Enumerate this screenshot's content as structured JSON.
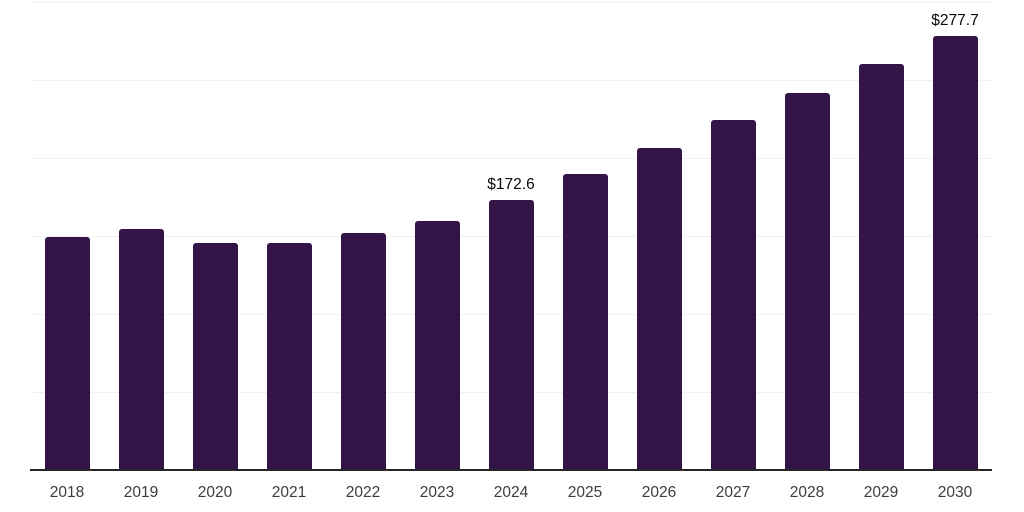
{
  "chart_data": {
    "type": "bar",
    "title": "",
    "xlabel": "",
    "ylabel": "",
    "categories": [
      "2018",
      "2019",
      "2020",
      "2021",
      "2022",
      "2023",
      "2024",
      "2025",
      "2026",
      "2027",
      "2028",
      "2029",
      "2030"
    ],
    "values": [
      148.7,
      153.6,
      145.1,
      144.9,
      151.1,
      159.1,
      172.6,
      189.4,
      206.0,
      223.8,
      241.3,
      259.6,
      277.7
    ],
    "value_labels": {
      "2024": "$172.6",
      "2030": "$277.7"
    },
    "ylim": [
      0,
      300
    ],
    "grid_step": 50,
    "grid": "horizontal",
    "legend": "none",
    "colors": {
      "bar": "#321447",
      "axis": "#262626",
      "gridline": "#f0f0f0",
      "tick_label": "#3c3c3c",
      "data_label": "#0a0a0a"
    }
  }
}
